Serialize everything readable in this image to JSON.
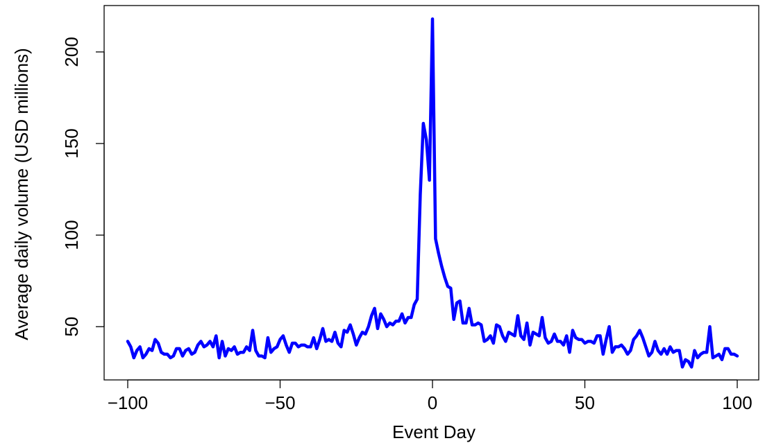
{
  "chart_data": {
    "type": "line",
    "title": "",
    "xlabel": "Event Day",
    "ylabel": "Average daily volume (USD millions)",
    "xlim": [
      -100,
      100
    ],
    "ylim": [
      27,
      217
    ],
    "xticks": [
      -100,
      -50,
      0,
      50,
      100
    ],
    "yticks": [
      50,
      100,
      150,
      200
    ],
    "xtick_labels": [
      "−100",
      "−50",
      "0",
      "50",
      "100"
    ],
    "ytick_labels": [
      "50",
      "100",
      "150",
      "200"
    ],
    "grid": false,
    "legend": "none",
    "line_color": "#0000ff",
    "series": [
      {
        "x": [
          -100,
          -99,
          -98,
          -97,
          -96,
          -95,
          -94,
          -93,
          -92,
          -91,
          -90,
          -89,
          -88,
          -87,
          -86,
          -85,
          -84,
          -83,
          -82,
          -81,
          -80,
          -79,
          -78,
          -77,
          -76,
          -75,
          -74,
          -73,
          -72,
          -71,
          -70,
          -69,
          -68,
          -67,
          -66,
          -65,
          -64,
          -63,
          -62,
          -61,
          -60,
          -59,
          -58,
          -57,
          -56,
          -55,
          -54,
          -53,
          -52,
          -51,
          -50,
          -49,
          -48,
          -47,
          -46,
          -45,
          -44,
          -43,
          -42,
          -41,
          -40,
          -39,
          -38,
          -37,
          -36,
          -35,
          -34,
          -33,
          -32,
          -31,
          -30,
          -29,
          -28,
          -27,
          -26,
          -25,
          -24,
          -23,
          -22,
          -21,
          -20,
          -19,
          -18,
          -17,
          -16,
          -15,
          -14,
          -13,
          -12,
          -11,
          -10,
          -9,
          -8,
          -7,
          -6,
          -5,
          -4,
          -3,
          -2,
          -1,
          0,
          1,
          2,
          3,
          4,
          5,
          6,
          7,
          8,
          9,
          10,
          11,
          12,
          13,
          14,
          15,
          16,
          17,
          18,
          19,
          20,
          21,
          22,
          23,
          24,
          25,
          26,
          27,
          28,
          29,
          30,
          31,
          32,
          33,
          34,
          35,
          36,
          37,
          38,
          39,
          40,
          41,
          42,
          43,
          44,
          45,
          46,
          47,
          48,
          49,
          50,
          51,
          52,
          53,
          54,
          55,
          56,
          57,
          58,
          59,
          60,
          61,
          62,
          63,
          64,
          65,
          66,
          67,
          68,
          69,
          70,
          71,
          72,
          73,
          74,
          75,
          76,
          77,
          78,
          79,
          80,
          81,
          82,
          83,
          84,
          85,
          86,
          87,
          88,
          89,
          90,
          91,
          92,
          93,
          94,
          95,
          96,
          97,
          98,
          99,
          100
        ],
        "y": [
          42,
          39,
          33,
          37,
          39,
          33,
          35,
          38,
          37,
          43,
          41,
          36,
          35,
          35,
          33,
          34,
          38,
          38,
          34,
          37,
          38,
          35,
          36,
          40,
          42,
          39,
          40,
          42,
          39,
          45,
          33,
          42,
          34,
          38,
          37,
          39,
          35,
          36,
          36,
          39,
          37,
          48,
          37,
          34,
          34,
          33,
          44,
          36,
          38,
          39,
          43,
          45,
          40,
          36,
          41,
          41,
          39,
          40,
          40,
          39,
          39,
          44,
          38,
          43,
          49,
          42,
          43,
          42,
          47,
          41,
          39,
          48,
          47,
          51,
          46,
          40,
          44,
          47,
          46,
          50,
          56,
          60,
          49,
          57,
          54,
          50,
          52,
          51,
          53,
          53,
          57,
          52,
          55,
          55,
          62,
          65,
          122,
          161,
          152,
          130,
          218,
          98,
          90,
          83,
          77,
          72,
          71,
          54,
          63,
          64,
          52,
          52,
          60,
          51,
          51,
          52,
          51,
          42,
          43,
          45,
          41,
          51,
          50,
          45,
          42,
          47,
          46,
          45,
          56,
          45,
          43,
          52,
          40,
          47,
          46,
          45,
          55,
          44,
          41,
          42,
          46,
          42,
          42,
          40,
          45,
          36,
          48,
          44,
          43,
          43,
          41,
          42,
          42,
          41,
          45,
          45,
          35,
          43,
          50,
          36,
          39,
          39,
          40,
          38,
          35,
          37,
          43,
          45,
          48,
          44,
          39,
          34,
          36,
          42,
          37,
          35,
          38,
          35,
          39,
          36,
          37,
          37,
          28,
          32,
          31,
          28,
          37,
          33,
          35,
          36,
          36,
          50,
          33,
          34,
          35,
          32,
          38,
          38,
          35,
          35,
          34
        ]
      }
    ]
  }
}
